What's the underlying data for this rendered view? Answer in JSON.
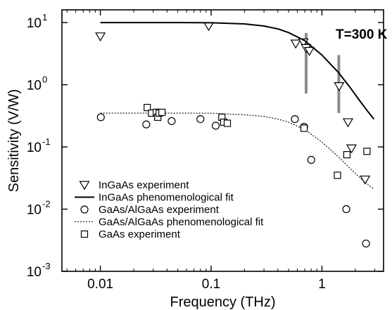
{
  "chart_data": {
    "type": "scatter",
    "xlabel": "Frequency (THz)",
    "ylabel": "Sensitivity (V/W)",
    "x_scale": "log",
    "y_scale": "log",
    "xlim": [
      0.0045,
      3.6
    ],
    "ylim": [
      0.001,
      16
    ],
    "x_ticks": [
      {
        "value": 0.01,
        "label": "0.01"
      },
      {
        "value": 0.1,
        "label": "0.1"
      },
      {
        "value": 1,
        "label": "1"
      }
    ],
    "y_ticks": [
      {
        "value": 0.001,
        "base": "10",
        "exp": "-3"
      },
      {
        "value": 0.01,
        "base": "10",
        "exp": "-2"
      },
      {
        "value": 0.1,
        "base": "10",
        "exp": "-1"
      },
      {
        "value": 1,
        "base": "10",
        "exp": "0"
      },
      {
        "value": 10,
        "base": "10",
        "exp": "1"
      }
    ],
    "annotation": "T=300 K",
    "legend_position": "bottom-left",
    "series": [
      {
        "name": "InGaAs experiment",
        "kind": "points",
        "marker": "triangle-down",
        "points": [
          [
            0.01,
            6.0
          ],
          [
            0.095,
            8.8
          ],
          [
            0.58,
            4.6
          ],
          [
            0.68,
            4.8
          ],
          [
            0.72,
            3.9
          ],
          [
            0.77,
            3.5
          ],
          [
            1.43,
            0.95
          ],
          [
            1.72,
            0.25
          ],
          [
            1.85,
            0.095
          ],
          [
            2.45,
            0.03
          ]
        ]
      },
      {
        "name": "InGaAs phenomenological fit",
        "kind": "line",
        "style": "solid",
        "points": [
          [
            0.01,
            10.0
          ],
          [
            0.05,
            10.0
          ],
          [
            0.1,
            9.9
          ],
          [
            0.2,
            9.5
          ],
          [
            0.3,
            8.8
          ],
          [
            0.4,
            7.9
          ],
          [
            0.5,
            6.9
          ],
          [
            0.7,
            5.1
          ],
          [
            1.0,
            3.0
          ],
          [
            1.4,
            1.6
          ],
          [
            1.8,
            0.9
          ],
          [
            2.2,
            0.55
          ],
          [
            2.6,
            0.37
          ],
          [
            2.95,
            0.28
          ]
        ]
      },
      {
        "name": "GaAs/AlGaAs experiment",
        "kind": "points",
        "marker": "circle",
        "points": [
          [
            0.0101,
            0.3
          ],
          [
            0.026,
            0.23
          ],
          [
            0.044,
            0.26
          ],
          [
            0.08,
            0.28
          ],
          [
            0.11,
            0.22
          ],
          [
            0.57,
            0.28
          ],
          [
            0.69,
            0.21
          ],
          [
            0.8,
            0.062
          ],
          [
            1.66,
            0.01
          ],
          [
            2.5,
            0.0028
          ]
        ]
      },
      {
        "name": "GaAs/AlGaAs phenomenological fit",
        "kind": "line",
        "style": "dotted",
        "points": [
          [
            0.01,
            0.35
          ],
          [
            0.05,
            0.35
          ],
          [
            0.1,
            0.348
          ],
          [
            0.2,
            0.33
          ],
          [
            0.3,
            0.31
          ],
          [
            0.4,
            0.28
          ],
          [
            0.5,
            0.25
          ],
          [
            0.7,
            0.19
          ],
          [
            1.0,
            0.12
          ],
          [
            1.4,
            0.07
          ],
          [
            1.8,
            0.045
          ],
          [
            2.2,
            0.032
          ],
          [
            2.6,
            0.025
          ],
          [
            2.95,
            0.021
          ]
        ]
      },
      {
        "name": "GaAs experiment",
        "kind": "points",
        "marker": "square",
        "points": [
          [
            0.0265,
            0.43
          ],
          [
            0.029,
            0.35
          ],
          [
            0.032,
            0.36
          ],
          [
            0.033,
            0.3
          ],
          [
            0.034,
            0.35
          ],
          [
            0.036,
            0.36
          ],
          [
            0.125,
            0.3
          ],
          [
            0.13,
            0.25
          ],
          [
            0.14,
            0.24
          ],
          [
            0.69,
            0.2
          ],
          [
            1.38,
            0.035
          ],
          [
            1.68,
            0.075
          ],
          [
            2.55,
            0.085
          ]
        ]
      }
    ],
    "error_bars": [
      {
        "x": 0.72,
        "y_low": 0.72,
        "y_high": 6.8
      },
      {
        "x": 1.42,
        "y_low": 0.35,
        "y_high": 3.0
      }
    ],
    "colors": {
      "axis": "#000000",
      "markers": "#000000",
      "error_bar": "#8c8c8c"
    }
  }
}
